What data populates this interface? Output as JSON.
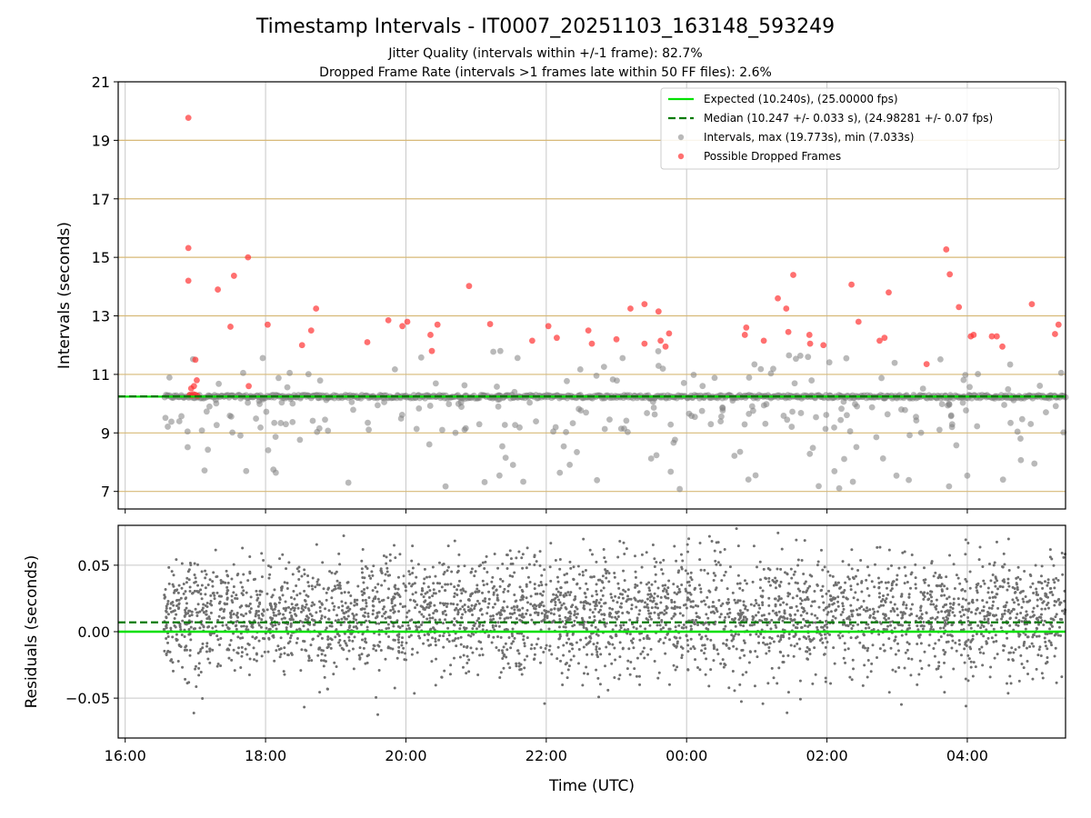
{
  "chart_data": [
    {
      "type": "scatter",
      "title": "Timestamp Intervals - IT0007_20251103_163148_593249",
      "subtitle_lines": [
        "Jitter Quality (intervals within +/-1 frame): 82.7%",
        "Dropped Frame Rate (intervals >1 frames late within 50 FF files): 2.6%"
      ],
      "ylabel": "Intervals (seconds)",
      "xlim_hours": [
        15.9,
        29.4
      ],
      "ylim": [
        6.4,
        21
      ],
      "yticks": [
        7,
        9,
        11,
        13,
        15,
        17,
        19,
        21
      ],
      "ytick_labels": [
        "7",
        "9",
        "11",
        "13",
        "15",
        "17",
        "19",
        "21"
      ],
      "frame_gridlines": [
        7,
        9,
        11,
        13,
        15,
        17,
        19
      ],
      "colors": {
        "expected": "#00e000",
        "median": "#007a00",
        "intervals": "#808080",
        "dropped": "#ff3333",
        "frame_grid": "#d7b977",
        "grid": "#c8c8c8"
      },
      "legend_position": "top-right",
      "series": [
        {
          "name": "Expected (10.240s), (25.00000 fps)",
          "style": "solid-line",
          "y": 10.24
        },
        {
          "name": "Median (10.247 +/- 0.033 s), (24.98281 +/- 0.07 fps)",
          "style": "dashed-line",
          "y": 10.247
        },
        {
          "name": "Intervals, max (19.773s), min (7.033s)",
          "style": "gray-points",
          "band_center": 10.24,
          "band_halfwidth": 0.06,
          "x_start_hours": 16.55,
          "x_end_hours": 29.4,
          "count": 720,
          "scatter_outliers_count": 260,
          "outlier_range": [
            7.03,
            11.8
          ]
        },
        {
          "name": "Possible Dropped Frames",
          "style": "red-points",
          "points": [
            [
              16.9,
              19.77
            ],
            [
              16.9,
              15.32
            ],
            [
              16.9,
              14.2
            ],
            [
              16.94,
              10.52
            ],
            [
              16.98,
              10.6
            ],
            [
              17.0,
              11.5
            ],
            [
              17.02,
              10.8
            ],
            [
              16.92,
              10.3
            ],
            [
              16.95,
              10.28
            ],
            [
              16.97,
              10.32
            ],
            [
              17.0,
              10.3
            ],
            [
              17.03,
              10.27
            ],
            [
              17.32,
              13.9
            ],
            [
              17.5,
              12.63
            ],
            [
              17.55,
              14.37
            ],
            [
              17.75,
              15.0
            ],
            [
              17.76,
              10.6
            ],
            [
              18.03,
              12.7
            ],
            [
              18.52,
              12.0
            ],
            [
              18.65,
              12.5
            ],
            [
              18.72,
              13.25
            ],
            [
              19.45,
              12.1
            ],
            [
              19.75,
              12.85
            ],
            [
              19.95,
              12.65
            ],
            [
              20.02,
              12.8
            ],
            [
              20.35,
              12.35
            ],
            [
              20.37,
              11.8
            ],
            [
              20.45,
              12.7
            ],
            [
              20.9,
              14.02
            ],
            [
              21.2,
              12.72
            ],
            [
              21.8,
              12.15
            ],
            [
              22.03,
              12.65
            ],
            [
              22.15,
              12.25
            ],
            [
              22.6,
              12.5
            ],
            [
              22.65,
              12.05
            ],
            [
              23.0,
              12.2
            ],
            [
              23.2,
              13.25
            ],
            [
              23.4,
              13.4
            ],
            [
              23.4,
              12.05
            ],
            [
              23.6,
              13.15
            ],
            [
              23.63,
              12.15
            ],
            [
              23.7,
              11.95
            ],
            [
              23.75,
              12.4
            ],
            [
              24.85,
              12.6
            ],
            [
              24.83,
              12.35
            ],
            [
              25.1,
              12.15
            ],
            [
              25.3,
              13.6
            ],
            [
              25.42,
              13.25
            ],
            [
              25.45,
              12.45
            ],
            [
              25.52,
              14.4
            ],
            [
              25.75,
              12.35
            ],
            [
              25.76,
              12.05
            ],
            [
              25.95,
              12.0
            ],
            [
              26.35,
              14.07
            ],
            [
              26.45,
              12.8
            ],
            [
              26.75,
              12.15
            ],
            [
              26.82,
              12.25
            ],
            [
              26.88,
              13.8
            ],
            [
              27.42,
              11.35
            ],
            [
              27.7,
              15.27
            ],
            [
              27.75,
              14.42
            ],
            [
              27.88,
              13.3
            ],
            [
              28.05,
              12.3
            ],
            [
              28.09,
              12.35
            ],
            [
              28.35,
              12.3
            ],
            [
              28.42,
              12.3
            ],
            [
              28.5,
              11.95
            ],
            [
              28.92,
              13.4
            ],
            [
              29.25,
              12.38
            ],
            [
              29.3,
              12.7
            ]
          ]
        }
      ]
    },
    {
      "type": "scatter",
      "ylabel": "Residuals (seconds)",
      "xlabel": "Time (UTC)",
      "xlim_hours": [
        15.9,
        29.4
      ],
      "ylim": [
        -0.08,
        0.08
      ],
      "yticks": [
        -0.05,
        0.0,
        0.05
      ],
      "ytick_labels": [
        "−0.05",
        "0.00",
        "0.05"
      ],
      "xticks_hours": [
        16,
        18,
        20,
        22,
        24,
        26,
        28
      ],
      "xtick_labels": [
        "16:00",
        "18:00",
        "20:00",
        "22:00",
        "00:00",
        "02:00",
        "04:00"
      ],
      "series": [
        {
          "name": "Expected",
          "style": "solid-line",
          "y": 0.0
        },
        {
          "name": "Median",
          "style": "dashed-line",
          "y": 0.007
        },
        {
          "name": "Residuals",
          "style": "gray-dots",
          "count": 3600,
          "x_start_hours": 16.55,
          "x_end_hours": 29.4,
          "center": 0.012,
          "spread": 0.022
        }
      ]
    }
  ]
}
